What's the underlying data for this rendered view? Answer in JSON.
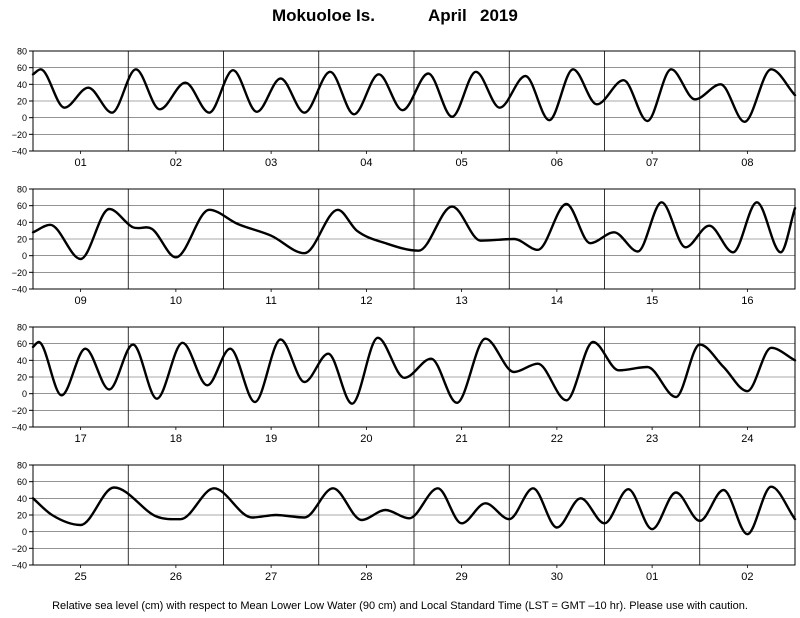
{
  "header": {
    "station": "Mokuoloe Is.",
    "month": "April",
    "year": "2019"
  },
  "footer": {
    "note": "Relative sea level (cm) with respect to Mean Lower Low Water (90 cm) and Local Standard Time (LST = GMT –10 hr). Please use with caution."
  },
  "chart_data": [
    {
      "type": "line",
      "title": "",
      "xlabel": "",
      "ylabel": "",
      "ylim": [
        -40,
        80
      ],
      "yticks": [
        -40,
        -20,
        0,
        20,
        40,
        60,
        80
      ],
      "grid": true,
      "categories": [
        "01",
        "02",
        "03",
        "04",
        "05",
        "06",
        "07",
        "08"
      ],
      "series": [
        {
          "name": "",
          "x": [
            0,
            0.08,
            0.33,
            0.58,
            0.83,
            1.08,
            1.33,
            1.6,
            1.85,
            2.1,
            2.35,
            2.6,
            2.85,
            3.12,
            3.37,
            3.63,
            3.88,
            4.15,
            4.4,
            4.65,
            4.9,
            5.17,
            5.42,
            5.67,
            5.92,
            6.2,
            6.45,
            6.7,
            6.95,
            7.22,
            7.47,
            7.75,
            8.0
          ],
          "values": [
            52,
            58,
            12,
            36,
            6,
            58,
            10,
            42,
            6,
            57,
            7,
            47,
            6,
            55,
            4,
            52,
            9,
            53,
            1,
            55,
            12,
            50,
            -3,
            58,
            16,
            45,
            -4,
            58,
            22,
            40,
            -5,
            58,
            27
          ]
        }
      ]
    },
    {
      "type": "line",
      "title": "",
      "xlabel": "",
      "ylabel": "",
      "ylim": [
        -40,
        80
      ],
      "yticks": [
        -40,
        -20,
        0,
        20,
        40,
        60,
        80
      ],
      "grid": true,
      "categories": [
        "09",
        "10",
        "11",
        "12",
        "13",
        "14",
        "15",
        "16"
      ],
      "series": [
        {
          "name": "",
          "x": [
            0,
            0.18,
            0.5,
            0.8,
            1.05,
            1.25,
            1.5,
            1.85,
            2.15,
            2.5,
            2.85,
            3.2,
            3.4,
            3.7,
            4.05,
            4.4,
            4.7,
            5.05,
            5.3,
            5.6,
            5.85,
            6.1,
            6.35,
            6.6,
            6.85,
            7.1,
            7.35,
            7.6,
            7.85,
            8.0
          ],
          "values": [
            28,
            37,
            -4,
            56,
            34,
            32,
            -2,
            55,
            38,
            24,
            3,
            55,
            30,
            15,
            6,
            59,
            18,
            20,
            7,
            62,
            15,
            28,
            5,
            64,
            10,
            36,
            4,
            64,
            4,
            57
          ]
        }
      ]
    },
    {
      "type": "line",
      "title": "",
      "xlabel": "",
      "ylabel": "",
      "ylim": [
        -40,
        80
      ],
      "yticks": [
        -40,
        -20,
        0,
        20,
        40,
        60,
        80
      ],
      "grid": true,
      "categories": [
        "17",
        "18",
        "19",
        "20",
        "21",
        "22",
        "23",
        "24"
      ],
      "series": [
        {
          "name": "",
          "x": [
            0,
            0.06,
            0.3,
            0.55,
            0.8,
            1.05,
            1.3,
            1.57,
            1.83,
            2.07,
            2.33,
            2.6,
            2.85,
            3.1,
            3.35,
            3.62,
            3.9,
            4.18,
            4.45,
            4.75,
            5.05,
            5.3,
            5.6,
            5.88,
            6.15,
            6.45,
            6.75,
            7.0,
            7.25,
            7.5,
            7.75,
            8.0
          ],
          "values": [
            56,
            62,
            -2,
            54,
            5,
            59,
            -6,
            61,
            10,
            54,
            -10,
            65,
            14,
            48,
            -12,
            67,
            19,
            42,
            -11,
            66,
            26,
            36,
            -8,
            62,
            28,
            32,
            -4,
            59,
            32,
            3,
            55,
            40
          ]
        }
      ]
    },
    {
      "type": "line",
      "title": "",
      "xlabel": "",
      "ylabel": "",
      "ylim": [
        -40,
        80
      ],
      "yticks": [
        -40,
        -20,
        0,
        20,
        40,
        60,
        80
      ],
      "grid": true,
      "categories": [
        "25",
        "26",
        "27",
        "28",
        "29",
        "30",
        "01",
        "02"
      ],
      "series": [
        {
          "name": "",
          "x": [
            0,
            0.2,
            0.5,
            0.85,
            1.3,
            1.55,
            1.9,
            2.3,
            2.55,
            2.85,
            3.15,
            3.45,
            3.7,
            3.95,
            4.25,
            4.5,
            4.75,
            5.0,
            5.25,
            5.5,
            5.75,
            6.0,
            6.25,
            6.5,
            6.75,
            7.0,
            7.25,
            7.5,
            7.75,
            8.0
          ],
          "values": [
            40,
            20,
            8,
            53,
            18,
            15,
            52,
            17,
            20,
            17,
            52,
            14,
            26,
            16,
            52,
            10,
            34,
            15,
            52,
            5,
            40,
            10,
            51,
            3,
            47,
            13,
            50,
            -3,
            54,
            15
          ]
        }
      ]
    }
  ]
}
